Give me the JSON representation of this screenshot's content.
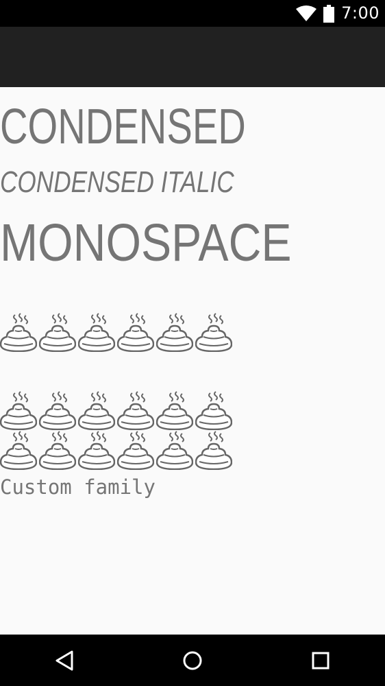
{
  "status_bar": {
    "time": "7:00",
    "icons": [
      "wifi-icon",
      "battery-icon"
    ]
  },
  "app_bar": {
    "title": ""
  },
  "content": {
    "condensed": "CONDENSED",
    "condensed_italic": "CONDENSED ITALIC",
    "monospace": "MONOSPACE",
    "emoji_rows": [
      {
        "glyph": "pile-of-poo-icon",
        "count": 6
      },
      {
        "glyph": "pile-of-poo-icon",
        "count": 6
      },
      {
        "glyph": "pile-of-poo-icon",
        "count": 6
      }
    ],
    "custom_family": "Custom family"
  },
  "nav_bar": {
    "buttons": [
      "back-icon",
      "home-icon",
      "recents-icon"
    ]
  },
  "colors": {
    "status_bar": "#000000",
    "app_bar": "#212121",
    "background": "#fafafa",
    "text": "#757575",
    "nav_bar": "#000000"
  }
}
